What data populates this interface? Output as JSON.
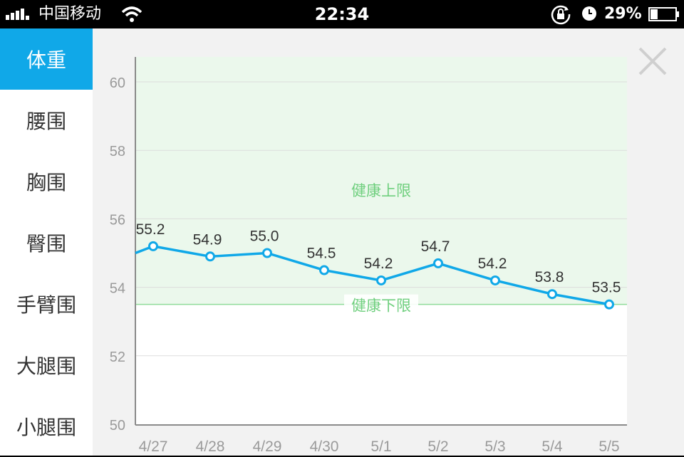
{
  "status_bar": {
    "carrier": "中国移动",
    "time": "22:34",
    "battery_percent": "29%",
    "battery_level": 0.29,
    "signal_bars": 4,
    "icons": [
      "signal-icon",
      "wifi-icon",
      "rotation-lock-icon",
      "alarm-icon",
      "battery-icon"
    ]
  },
  "sidebar": {
    "items": [
      {
        "label": "体重",
        "active": true
      },
      {
        "label": "腰围",
        "active": false
      },
      {
        "label": "胸围",
        "active": false
      },
      {
        "label": "臀围",
        "active": false
      },
      {
        "label": "手臂围",
        "active": false
      },
      {
        "label": "大腿围",
        "active": false
      },
      {
        "label": "小腿围",
        "active": false
      }
    ]
  },
  "close_button": {
    "icon": "close-icon"
  },
  "colors": {
    "accent": "#10a8e8",
    "line": "#10a8e8",
    "healthy_band": "#ebf8ec",
    "healthy_text": "#6fcf7e",
    "axis_text": "#9a9a9a",
    "value_text": "#333333"
  },
  "chart_data": {
    "type": "line",
    "categories": [
      "4/27",
      "4/28",
      "4/29",
      "4/30",
      "5/1",
      "5/2",
      "5/3",
      "5/4",
      "5/5"
    ],
    "values": [
      55.2,
      54.9,
      55.0,
      54.5,
      54.2,
      54.7,
      54.2,
      53.8,
      53.5
    ],
    "value_labels": [
      "55.2",
      "54.9",
      "55.0",
      "54.5",
      "54.2",
      "54.7",
      "54.2",
      "53.8",
      "53.5"
    ],
    "leading_value": 55.0,
    "y_ticks": [
      50,
      52,
      54,
      56,
      58,
      60
    ],
    "ylim": [
      50,
      60.8
    ],
    "grid": true,
    "healthy_upper": 60.8,
    "healthy_lower": 53.5,
    "healthy_upper_label": "健康上限",
    "healthy_lower_label": "健康下限"
  }
}
